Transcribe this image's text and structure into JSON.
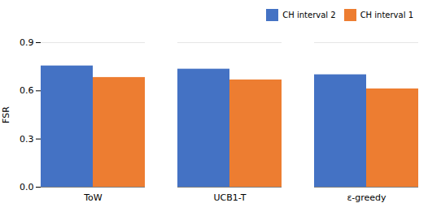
{
  "chart_data": {
    "type": "bar",
    "categories": [
      "ToW",
      "UCB1-T",
      "ε-greedy"
    ],
    "series": [
      {
        "name": "CH interval 2",
        "color": "#4472C4",
        "values": [
          0.755,
          0.735,
          0.7
        ]
      },
      {
        "name": "CH interval 1",
        "color": "#ED7D31",
        "values": [
          0.683,
          0.668,
          0.612
        ]
      }
    ],
    "ylabel": "FSR",
    "ylim": [
      0,
      0.9
    ],
    "yticks": [
      0,
      0.3,
      0.6,
      0.9
    ],
    "grid": true,
    "legend": "upper right"
  }
}
